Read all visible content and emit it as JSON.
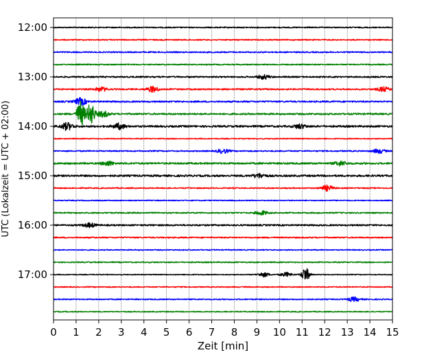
{
  "chart_data": {
    "type": "line",
    "xlabel": "Zeit  [min]",
    "ylabel": "UTC (Lokalzeit = UTC + 02:00)",
    "xlim": [
      0,
      15
    ],
    "x_ticks": [
      "0",
      "1",
      "2",
      "3",
      "4",
      "5",
      "6",
      "7",
      "8",
      "9",
      "10",
      "11",
      "12",
      "13",
      "14",
      "15"
    ],
    "y_ticks": [
      "12:00",
      "13:00",
      "14:00",
      "15:00",
      "16:00",
      "17:00"
    ],
    "grid": "vertical dotted",
    "trace_interval_min": 15,
    "trace_colors": [
      "#000000",
      "#ff0000",
      "#0000ff",
      "#008000"
    ],
    "traces": [
      {
        "start": "12:00",
        "color": "#000000",
        "noise": 0.8
      },
      {
        "start": "12:15",
        "color": "#ff0000",
        "noise": 0.8
      },
      {
        "start": "12:30",
        "color": "#0000ff",
        "noise": 0.9
      },
      {
        "start": "12:45",
        "color": "#008000",
        "noise": 0.8
      },
      {
        "start": "13:00",
        "color": "#000000",
        "noise": 1.0,
        "events": [
          {
            "t": 9.3,
            "amp": 3
          }
        ]
      },
      {
        "start": "13:15",
        "color": "#ff0000",
        "noise": 1.0,
        "events": [
          {
            "t": 2.1,
            "amp": 3
          },
          {
            "t": 4.4,
            "amp": 4
          },
          {
            "t": 14.6,
            "amp": 3
          }
        ]
      },
      {
        "start": "13:30",
        "color": "#0000ff",
        "noise": 1.1,
        "events": [
          {
            "t": 1.2,
            "amp": 5
          }
        ]
      },
      {
        "start": "13:45",
        "color": "#008000",
        "noise": 1.2,
        "events": [
          {
            "t": 1.2,
            "amp": 18
          },
          {
            "t": 1.65,
            "amp": 16
          },
          {
            "t": 2.2,
            "amp": 4
          }
        ]
      },
      {
        "start": "14:00",
        "color": "#000000",
        "noise": 1.3,
        "events": [
          {
            "t": 0.6,
            "amp": 5
          },
          {
            "t": 2.9,
            "amp": 4
          },
          {
            "t": 10.9,
            "amp": 3
          }
        ]
      },
      {
        "start": "14:15",
        "color": "#ff0000",
        "noise": 0.7
      },
      {
        "start": "14:30",
        "color": "#0000ff",
        "noise": 0.9,
        "events": [
          {
            "t": 7.5,
            "amp": 3
          },
          {
            "t": 14.4,
            "amp": 3
          }
        ]
      },
      {
        "start": "14:45",
        "color": "#008000",
        "noise": 1.3,
        "events": [
          {
            "t": 2.4,
            "amp": 3
          },
          {
            "t": 12.7,
            "amp": 3
          }
        ]
      },
      {
        "start": "15:00",
        "color": "#000000",
        "noise": 1.3,
        "events": [
          {
            "t": 9.1,
            "amp": 3
          }
        ]
      },
      {
        "start": "15:15",
        "color": "#ff0000",
        "noise": 0.8,
        "events": [
          {
            "t": 12.1,
            "amp": 4
          }
        ]
      },
      {
        "start": "15:30",
        "color": "#0000ff",
        "noise": 0.7
      },
      {
        "start": "15:45",
        "color": "#008000",
        "noise": 0.9,
        "events": [
          {
            "t": 9.2,
            "amp": 3
          }
        ]
      },
      {
        "start": "16:00",
        "color": "#000000",
        "noise": 1.1,
        "events": [
          {
            "t": 1.6,
            "amp": 3
          }
        ]
      },
      {
        "start": "16:15",
        "color": "#ff0000",
        "noise": 0.9
      },
      {
        "start": "16:30",
        "color": "#0000ff",
        "noise": 0.7
      },
      {
        "start": "16:45",
        "color": "#008000",
        "noise": 0.8
      },
      {
        "start": "17:00",
        "color": "#000000",
        "noise": 0.6,
        "events": [
          {
            "t": 9.3,
            "amp": 3
          },
          {
            "t": 10.3,
            "amp": 3
          },
          {
            "t": 11.15,
            "amp": 10
          }
        ]
      },
      {
        "start": "17:15",
        "color": "#ff0000",
        "noise": 0.7
      },
      {
        "start": "17:30",
        "color": "#0000ff",
        "noise": 0.8,
        "events": [
          {
            "t": 13.3,
            "amp": 3
          }
        ]
      },
      {
        "start": "17:45",
        "color": "#008000",
        "noise": 0.7
      }
    ]
  }
}
